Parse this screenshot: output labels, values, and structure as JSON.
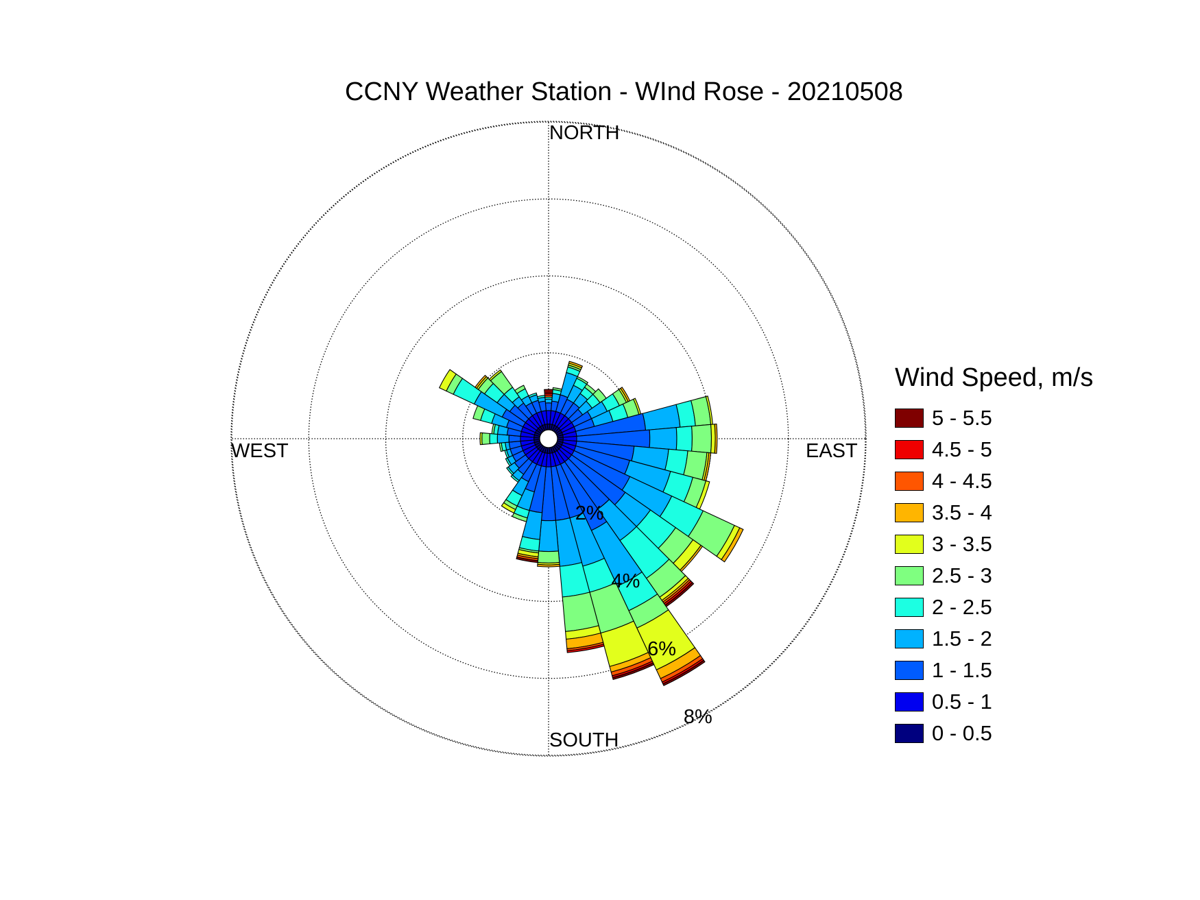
{
  "chart_data": {
    "type": "polar-bar",
    "title": "CCNY Weather Station - WInd Rose - 20210508",
    "direction_labels": {
      "north": "NORTH",
      "south": "SOUTH",
      "west": "WEST",
      "east": "EAST"
    },
    "ring_labels": [
      "2%",
      "4%",
      "6%",
      "8%"
    ],
    "ring_values": [
      2,
      4,
      6,
      8
    ],
    "max_radius": 8.25,
    "sector_width_deg": 10,
    "legend_title": "Wind Speed, m/s",
    "speed_bins": [
      "0 - 0.5",
      "0.5 - 1",
      "1 - 1.5",
      "1.5 - 2",
      "2 - 2.5",
      "2.5 - 3",
      "3 - 3.5",
      "3.5 - 4",
      "4 - 4.5",
      "4.5 - 5",
      "5 - 5.5"
    ],
    "colors": [
      "#00007f",
      "#0000f0",
      "#005cff",
      "#00b2ff",
      "#1cffe2",
      "#7fff80",
      "#e2ff1c",
      "#ffb500",
      "#ff5600",
      "#ef0000",
      "#7f0000"
    ],
    "sectors": [
      {
        "dir": 0,
        "values": [
          0.15,
          0.35,
          0.2,
          0.1,
          0.05,
          0,
          0,
          0,
          0.05,
          0.05,
          0.1
        ]
      },
      {
        "dir": 10,
        "values": [
          0.15,
          0.35,
          0.25,
          0.2,
          0.1,
          0.05,
          0,
          0,
          0,
          0,
          0
        ]
      },
      {
        "dir": 20,
        "values": [
          0.15,
          0.35,
          0.45,
          0.6,
          0.15,
          0.05,
          0.05,
          0.05,
          0,
          0,
          0
        ]
      },
      {
        "dir": 30,
        "values": [
          0.15,
          0.35,
          0.4,
          0.4,
          0.2,
          0.05,
          0,
          0,
          0,
          0,
          0
        ]
      },
      {
        "dir": 40,
        "values": [
          0.15,
          0.35,
          0.4,
          0.3,
          0.2,
          0.1,
          0,
          0,
          0,
          0,
          0
        ]
      },
      {
        "dir": 50,
        "values": [
          0.15,
          0.35,
          0.35,
          0.3,
          0.25,
          0.2,
          0,
          0,
          0,
          0,
          0
        ]
      },
      {
        "dir": 60,
        "values": [
          0.15,
          0.35,
          0.5,
          0.45,
          0.35,
          0.2,
          0.05,
          0.05,
          0,
          0,
          0
        ]
      },
      {
        "dir": 70,
        "values": [
          0.15,
          0.35,
          0.5,
          0.5,
          0.4,
          0.3,
          0.05,
          0,
          0,
          0,
          0
        ]
      },
      {
        "dir": 80,
        "values": [
          0.15,
          0.35,
          1.8,
          0.9,
          0.4,
          0.4,
          0.05,
          0,
          0,
          0,
          0
        ]
      },
      {
        "dir": 90,
        "values": [
          0.15,
          0.35,
          1.9,
          0.7,
          0.4,
          0.5,
          0.1,
          0.05,
          0,
          0,
          0
        ]
      },
      {
        "dir": 100,
        "values": [
          0.15,
          0.35,
          1.5,
          0.9,
          0.5,
          0.5,
          0.05,
          0.05,
          0,
          0,
          0
        ]
      },
      {
        "dir": 110,
        "values": [
          0.15,
          0.35,
          1.45,
          1.1,
          0.6,
          0.35,
          0.1,
          0,
          0,
          0,
          0
        ]
      },
      {
        "dir": 120,
        "values": [
          0.15,
          0.35,
          1.6,
          1.2,
          0.9,
          0.9,
          0.15,
          0.1,
          0,
          0,
          0
        ]
      },
      {
        "dir": 130,
        "values": [
          0.15,
          0.35,
          1.7,
          0.8,
          0.8,
          0.55,
          0.25,
          0.05,
          0,
          0,
          0
        ]
      },
      {
        "dir": 140,
        "values": [
          0.15,
          0.35,
          1.5,
          1.0,
          1.2,
          0.6,
          0.1,
          0.05,
          0.05,
          0.05,
          0.05
        ]
      },
      {
        "dir": 150,
        "values": [
          0.15,
          0.35,
          1.9,
          1.6,
          0.7,
          0.5,
          1.2,
          0.25,
          0.1,
          0.05,
          0.05
        ]
      },
      {
        "dir": 160,
        "values": [
          0.15,
          0.35,
          1.4,
          1.3,
          0.7,
          1.1,
          0.9,
          0.15,
          0.1,
          0.05,
          0.05
        ]
      },
      {
        "dir": 170,
        "values": [
          0.15,
          0.35,
          1.4,
          1.2,
          0.8,
          0.9,
          0.2,
          0.25,
          0.05,
          0.05,
          0
        ]
      },
      {
        "dir": 180,
        "values": [
          0.15,
          0.35,
          1.4,
          0.8,
          0,
          0.3,
          0.05,
          0.05,
          0,
          0,
          0
        ]
      },
      {
        "dir": 190,
        "values": [
          0.15,
          0.35,
          1.2,
          0.7,
          0.3,
          0.05,
          0.1,
          0.05,
          0.05,
          0,
          0.05
        ]
      },
      {
        "dir": 200,
        "values": [
          0.15,
          0.35,
          0.7,
          0.5,
          0.2,
          0.1,
          0,
          0,
          0,
          0,
          0
        ]
      },
      {
        "dir": 210,
        "values": [
          0.15,
          0.35,
          0.5,
          0.4,
          0.3,
          0.1,
          0.1,
          0,
          0,
          0,
          0
        ]
      },
      {
        "dir": 220,
        "values": [
          0.15,
          0.35,
          0.4,
          0.2,
          0.05,
          0,
          0,
          0,
          0,
          0,
          0
        ]
      },
      {
        "dir": 230,
        "values": [
          0.15,
          0.35,
          0.35,
          0.2,
          0.05,
          0,
          0,
          0,
          0,
          0,
          0
        ]
      },
      {
        "dir": 240,
        "values": [
          0.15,
          0.35,
          0.3,
          0.15,
          0.05,
          0,
          0,
          0,
          0,
          0,
          0
        ]
      },
      {
        "dir": 250,
        "values": [
          0.15,
          0.35,
          0.3,
          0.1,
          0.05,
          0,
          0,
          0,
          0,
          0,
          0
        ]
      },
      {
        "dir": 260,
        "values": [
          0.15,
          0.35,
          0.3,
          0.1,
          0.1,
          0.05,
          0,
          0,
          0,
          0,
          0
        ]
      },
      {
        "dir": 270,
        "values": [
          0.15,
          0.35,
          0.3,
          0.3,
          0.2,
          0.2,
          0.05,
          0,
          0,
          0,
          0
        ]
      },
      {
        "dir": 280,
        "values": [
          0.15,
          0.35,
          0.35,
          0.25,
          0.1,
          0.05,
          0,
          0,
          0,
          0,
          0
        ]
      },
      {
        "dir": 290,
        "values": [
          0.15,
          0.35,
          0.4,
          0.4,
          0.3,
          0.2,
          0,
          0,
          0,
          0,
          0
        ]
      },
      {
        "dir": 300,
        "values": [
          0.15,
          0.35,
          0.6,
          0.8,
          0.6,
          0.2,
          0.2,
          0,
          0,
          0,
          0
        ]
      },
      {
        "dir": 310,
        "values": [
          0.15,
          0.35,
          0.5,
          0.4,
          0.4,
          0.2,
          0.05,
          0.05,
          0,
          0,
          0
        ]
      },
      {
        "dir": 320,
        "values": [
          0.15,
          0.35,
          0.4,
          0.2,
          0.3,
          0.5,
          0.05,
          0,
          0,
          0,
          0
        ]
      },
      {
        "dir": 330,
        "values": [
          0.15,
          0.35,
          0.3,
          0.2,
          0.2,
          0.1,
          0,
          0,
          0,
          0,
          0
        ]
      },
      {
        "dir": 340,
        "values": [
          0.15,
          0.35,
          0.3,
          0.15,
          0.05,
          0,
          0,
          0,
          0,
          0,
          0
        ]
      },
      {
        "dir": 350,
        "values": [
          0.15,
          0.35,
          0.25,
          0.1,
          0.05,
          0,
          0,
          0,
          0,
          0,
          0
        ]
      }
    ]
  }
}
